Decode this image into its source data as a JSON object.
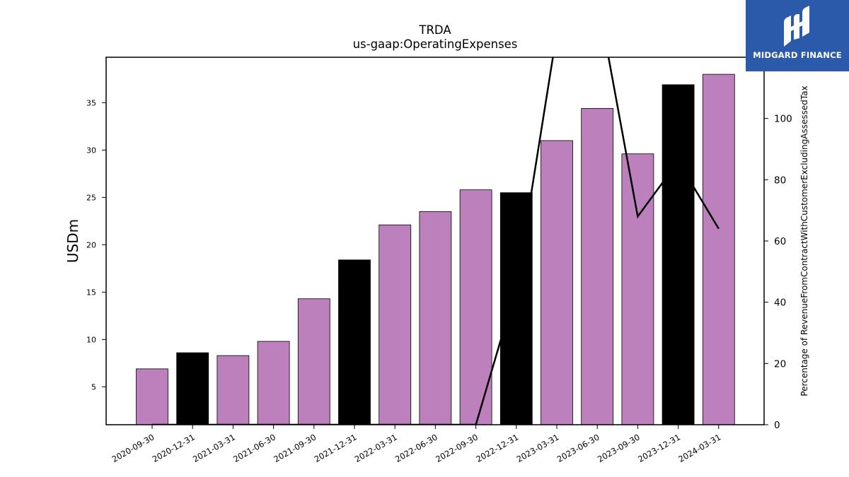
{
  "chart_data": {
    "type": "bar",
    "title": "TRDA",
    "subtitle": "us-gaap:OperatingExpenses",
    "ylabel": "USDm",
    "y2label": "Percentage of RevenueFromContractWithCustomerExcludingAssessedTax",
    "ylim": [
      1,
      39.8
    ],
    "y2lim": [
      0,
      120
    ],
    "yticks": [
      5,
      10,
      15,
      20,
      25,
      30,
      35
    ],
    "y2ticks": [
      0,
      20,
      40,
      60,
      80,
      100
    ],
    "categories": [
      "2020-09-30",
      "2020-12-31",
      "2021-03-31",
      "2021-06-30",
      "2021-09-30",
      "2021-12-31",
      "2022-03-31",
      "2022-06-30",
      "2022-09-30",
      "2022-12-31",
      "2023-03-31",
      "2023-06-30",
      "2023-09-30",
      "2023-12-31",
      "2024-03-31"
    ],
    "values": [
      6.9,
      8.6,
      8.3,
      9.8,
      14.3,
      18.4,
      22.1,
      23.5,
      25.8,
      25.5,
      31.0,
      34.4,
      29.6,
      36.9,
      38.0
    ],
    "bar_colors": [
      "#bc80bd",
      "#000000",
      "#bc80bd",
      "#bc80bd",
      "#bc80bd",
      "#000000",
      "#bc80bd",
      "#bc80bd",
      "#bc80bd",
      "#000000",
      "#bc80bd",
      "#bc80bd",
      "#bc80bd",
      "#000000",
      "#bc80bd"
    ],
    "series2": {
      "type": "line",
      "axis": "right",
      "color": "#000000",
      "values": [
        0,
        0,
        0,
        0,
        0,
        0,
        0,
        0,
        0,
        45,
        128,
        140,
        68,
        86,
        64
      ]
    },
    "grid": false,
    "legend": "none"
  },
  "logo": {
    "text": "MIDGARD FINANCE",
    "background": "#2b5aab"
  }
}
